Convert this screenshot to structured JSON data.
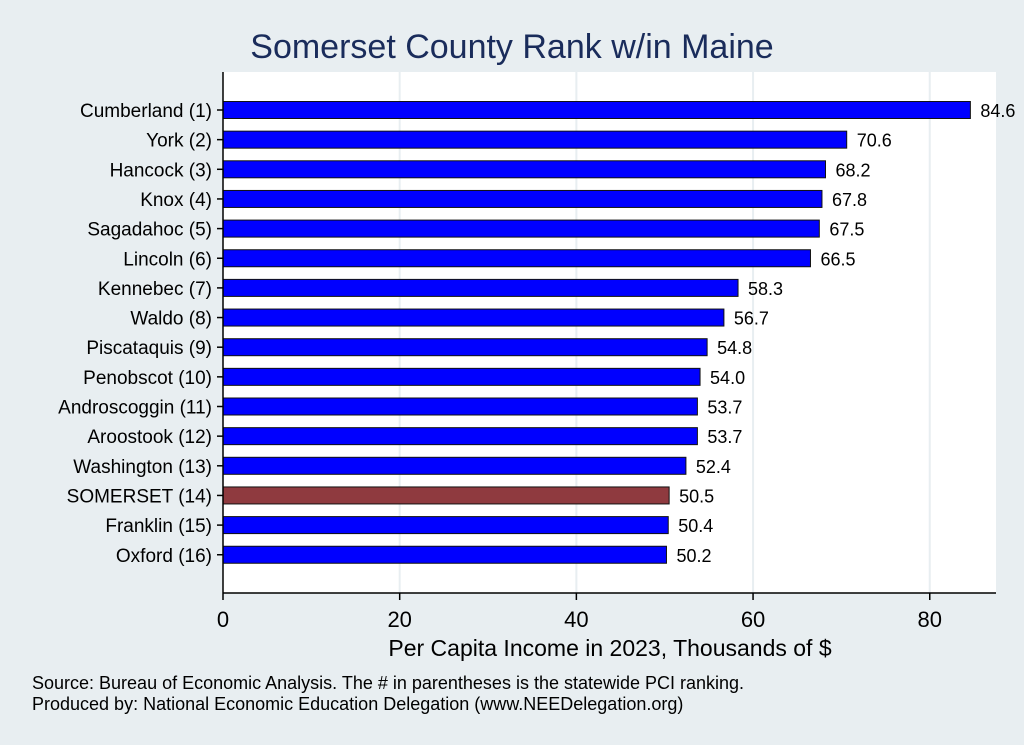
{
  "chart_data": {
    "type": "bar",
    "orientation": "horizontal",
    "title": "Somerset County Rank w/in Maine",
    "xlabel": "Per Capita Income in 2023, Thousands of $",
    "ylabel": "",
    "xlim": [
      0,
      87.5
    ],
    "xticks": [
      0,
      20,
      40,
      60,
      80
    ],
    "grid": true,
    "categories": [
      "Cumberland  (1)",
      "York  (2)",
      "Hancock  (3)",
      "Knox  (4)",
      "Sagadahoc  (5)",
      "Lincoln  (6)",
      "Kennebec  (7)",
      "Waldo  (8)",
      "Piscataquis  (9)",
      "Penobscot (10)",
      "Androscoggin (11)",
      "Aroostook (12)",
      "Washington (13)",
      "SOMERSET (14)",
      "Franklin (15)",
      "Oxford (16)"
    ],
    "values": [
      84.6,
      70.6,
      68.2,
      67.8,
      67.5,
      66.5,
      58.3,
      56.7,
      54.8,
      54.0,
      53.7,
      53.7,
      52.4,
      50.5,
      50.4,
      50.2
    ],
    "value_labels": [
      "84.6",
      "70.6",
      "68.2",
      "67.8",
      "67.5",
      "66.5",
      "58.3",
      "56.7",
      "54.8",
      "54.0",
      "53.7",
      "53.7",
      "52.4",
      "50.5",
      "50.4",
      "50.2"
    ],
    "highlight_index": 13,
    "colors": {
      "bar": "#0000ff",
      "highlight": "#8f3a3f",
      "title": "#1a2c5b",
      "background": "#e8eef1",
      "plot_background": "#ffffff",
      "grid": "#e8eef1"
    },
    "notes": [
      "Source: Bureau of Economic Analysis. The # in parentheses is the statewide PCI ranking.",
      "Produced by: National Economic Education Delegation (www.NEEDelegation.org)"
    ]
  }
}
